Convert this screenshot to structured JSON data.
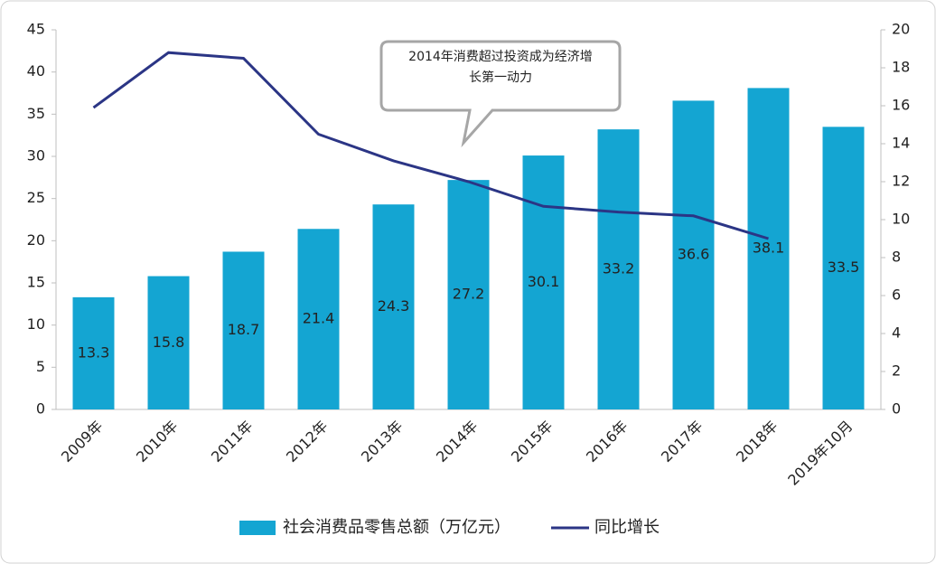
{
  "chart_data": {
    "type": "bar_line",
    "categories": [
      "2009年",
      "2010年",
      "2011年",
      "2012年",
      "2013年",
      "2014年",
      "2015年",
      "2016年",
      "2017年",
      "2018年",
      "2019年10月"
    ],
    "series": [
      {
        "name": "社会消费品零售总额（万亿元）",
        "type": "bar",
        "color": "#14a5d2",
        "values": [
          13.3,
          15.8,
          18.7,
          21.4,
          24.3,
          27.2,
          30.1,
          33.2,
          36.6,
          38.1,
          33.5
        ]
      },
      {
        "name": "同比增长",
        "type": "line",
        "axis": "y2",
        "color": "#2b3585",
        "values": [
          15.9,
          18.8,
          18.5,
          14.5,
          13.1,
          12.0,
          10.7,
          10.4,
          10.2,
          9.0,
          null
        ]
      }
    ],
    "ylim": [
      0,
      45
    ],
    "yticks": [
      0,
      5,
      10,
      15,
      20,
      25,
      30,
      35,
      40,
      45
    ],
    "y2lim": [
      0,
      20
    ],
    "y2ticks": [
      0,
      2,
      4,
      6,
      8,
      10,
      12,
      14,
      16,
      18,
      20
    ],
    "annotation": [
      "2014年消费超过投资成为经济增",
      "长第一动力"
    ],
    "legend": "bottom"
  }
}
